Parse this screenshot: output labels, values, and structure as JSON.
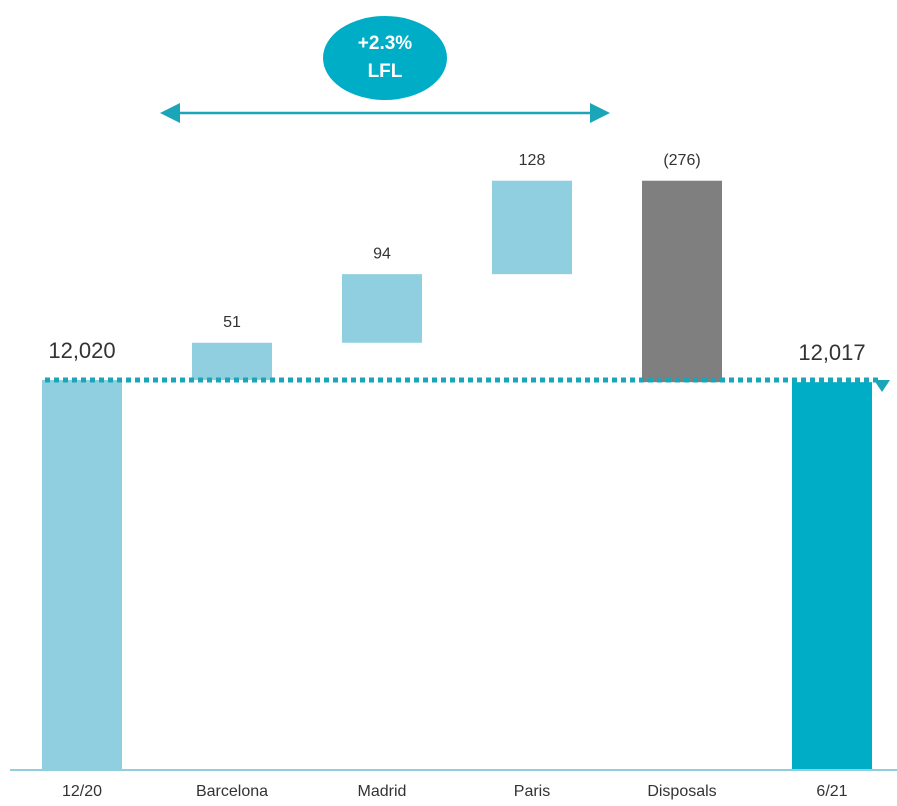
{
  "chart_data": {
    "type": "waterfall",
    "categories": [
      "12/20",
      "Barcelona",
      "Madrid",
      "Paris",
      "Disposals",
      "6/21"
    ],
    "values": [
      12020,
      51,
      94,
      128,
      -276,
      12017
    ],
    "value_labels": [
      "12,020",
      "51",
      "94",
      "128",
      "(276)",
      "12,017"
    ],
    "colors": [
      "#8fcfe0",
      "#8fcfe0",
      "#8fcfe0",
      "#8fcfe0",
      "#7f7f7f",
      "#00adc6"
    ],
    "annotation": [
      "+2.3%",
      "LFL"
    ]
  }
}
